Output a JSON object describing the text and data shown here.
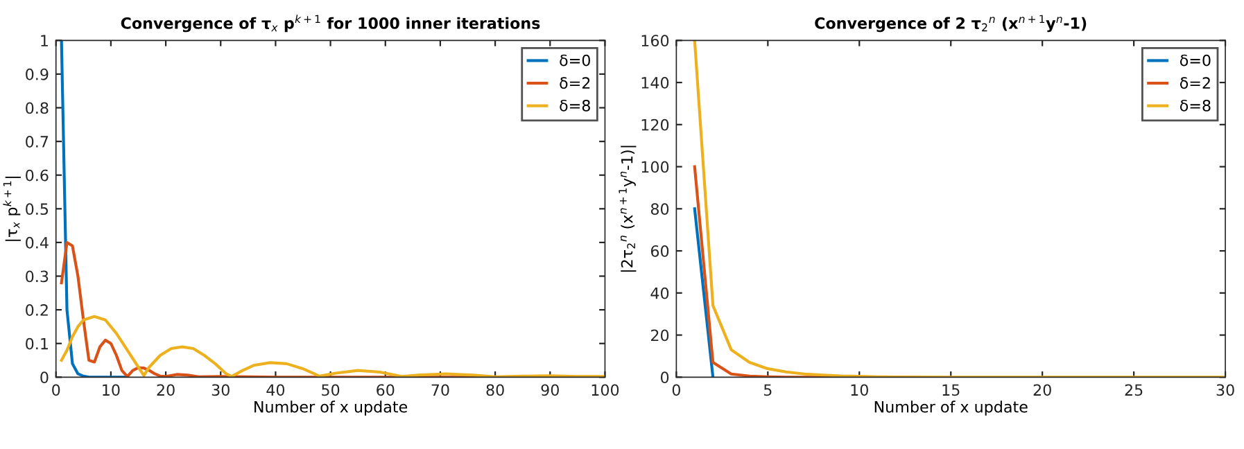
{
  "chart_data": [
    {
      "type": "line",
      "title": "Convergence of τ$_{x}$ p$^{k+1}$ for 1000 inner iterations",
      "xlabel": "Number of x update",
      "ylabel": "|τ$_{x}$ p$^{k+1}$|",
      "xlim": [
        0,
        100
      ],
      "ylim": [
        0,
        1
      ],
      "xticks": [
        0,
        10,
        20,
        30,
        40,
        50,
        60,
        70,
        80,
        90,
        100
      ],
      "yticks": [
        0,
        0.1,
        0.2,
        0.3,
        0.4,
        0.5,
        0.6,
        0.7,
        0.8,
        0.9,
        1
      ],
      "legend": "top right",
      "grid": false,
      "series": [
        {
          "name": "δ=0",
          "color": "#0072bd",
          "x": [
            1,
            2,
            3,
            4,
            5,
            6,
            13
          ],
          "values": [
            1.0,
            0.2,
            0.04,
            0.01,
            0.003,
            0,
            0
          ]
        },
        {
          "name": "δ=2",
          "color": "#d95319",
          "x": [
            1,
            2,
            3,
            4,
            5,
            6,
            7,
            8,
            9,
            10,
            11,
            12,
            13,
            14,
            15,
            16,
            17,
            18,
            19,
            20,
            22,
            24,
            26,
            30,
            35,
            40,
            60,
            80
          ],
          "values": [
            0.28,
            0.4,
            0.39,
            0.3,
            0.17,
            0.05,
            0.045,
            0.09,
            0.11,
            0.1,
            0.065,
            0.02,
            0.002,
            0.02,
            0.028,
            0.027,
            0.02,
            0.01,
            0.003,
            0.002,
            0.008,
            0.006,
            0.001,
            0.002,
            0.001,
            0,
            0,
            0
          ]
        },
        {
          "name": "δ=8",
          "color": "#edb120",
          "x": [
            1,
            2,
            3,
            4,
            5,
            7,
            9,
            11,
            13,
            15,
            16,
            17,
            19,
            21,
            23,
            25,
            27,
            29,
            31,
            32,
            34,
            36,
            39,
            42,
            45,
            48,
            51,
            55,
            59,
            63,
            66,
            71,
            76,
            80,
            85,
            90,
            95,
            100
          ],
          "values": [
            0.05,
            0.08,
            0.12,
            0.15,
            0.17,
            0.18,
            0.17,
            0.13,
            0.08,
            0.03,
            0.005,
            0.03,
            0.065,
            0.085,
            0.09,
            0.085,
            0.065,
            0.04,
            0.01,
            0.002,
            0.02,
            0.035,
            0.043,
            0.04,
            0.025,
            0.003,
            0.012,
            0.02,
            0.015,
            0.002,
            0.006,
            0.01,
            0.006,
            0.001,
            0.003,
            0.004,
            0.002,
            0.002
          ]
        }
      ]
    },
    {
      "type": "line",
      "title": "Convergence of 2 τ$_{2}$$^{n}$ (x$^{n+1}$y$^{n}$-1)",
      "xlabel": "Number of x update",
      "ylabel": "|2τ$_{2}$$^{n}$ (x$^{n+1}$y$^{n}$-1)|",
      "xlim": [
        0,
        30
      ],
      "ylim": [
        0,
        160
      ],
      "xticks": [
        0,
        5,
        10,
        15,
        20,
        25,
        30
      ],
      "yticks": [
        0,
        20,
        40,
        60,
        80,
        100,
        120,
        140,
        160
      ],
      "legend": "top right",
      "grid": false,
      "series": [
        {
          "name": "δ=0",
          "color": "#0072bd",
          "x": [
            1,
            2
          ],
          "values": [
            80,
            0
          ]
        },
        {
          "name": "δ=2",
          "color": "#d95319",
          "x": [
            1,
            2,
            3,
            4,
            5,
            6,
            8,
            10
          ],
          "values": [
            100,
            7,
            1.5,
            0.5,
            0.2,
            0,
            0,
            0
          ]
        },
        {
          "name": "δ=8",
          "color": "#edb120",
          "x": [
            1,
            2,
            3,
            4,
            5,
            6,
            7,
            8,
            9,
            10,
            11,
            12,
            15,
            30
          ],
          "values": [
            160,
            34,
            13,
            7,
            4,
            2.5,
            1.5,
            1,
            0.6,
            0.4,
            0.2,
            0.1,
            0,
            0
          ]
        }
      ]
    }
  ]
}
